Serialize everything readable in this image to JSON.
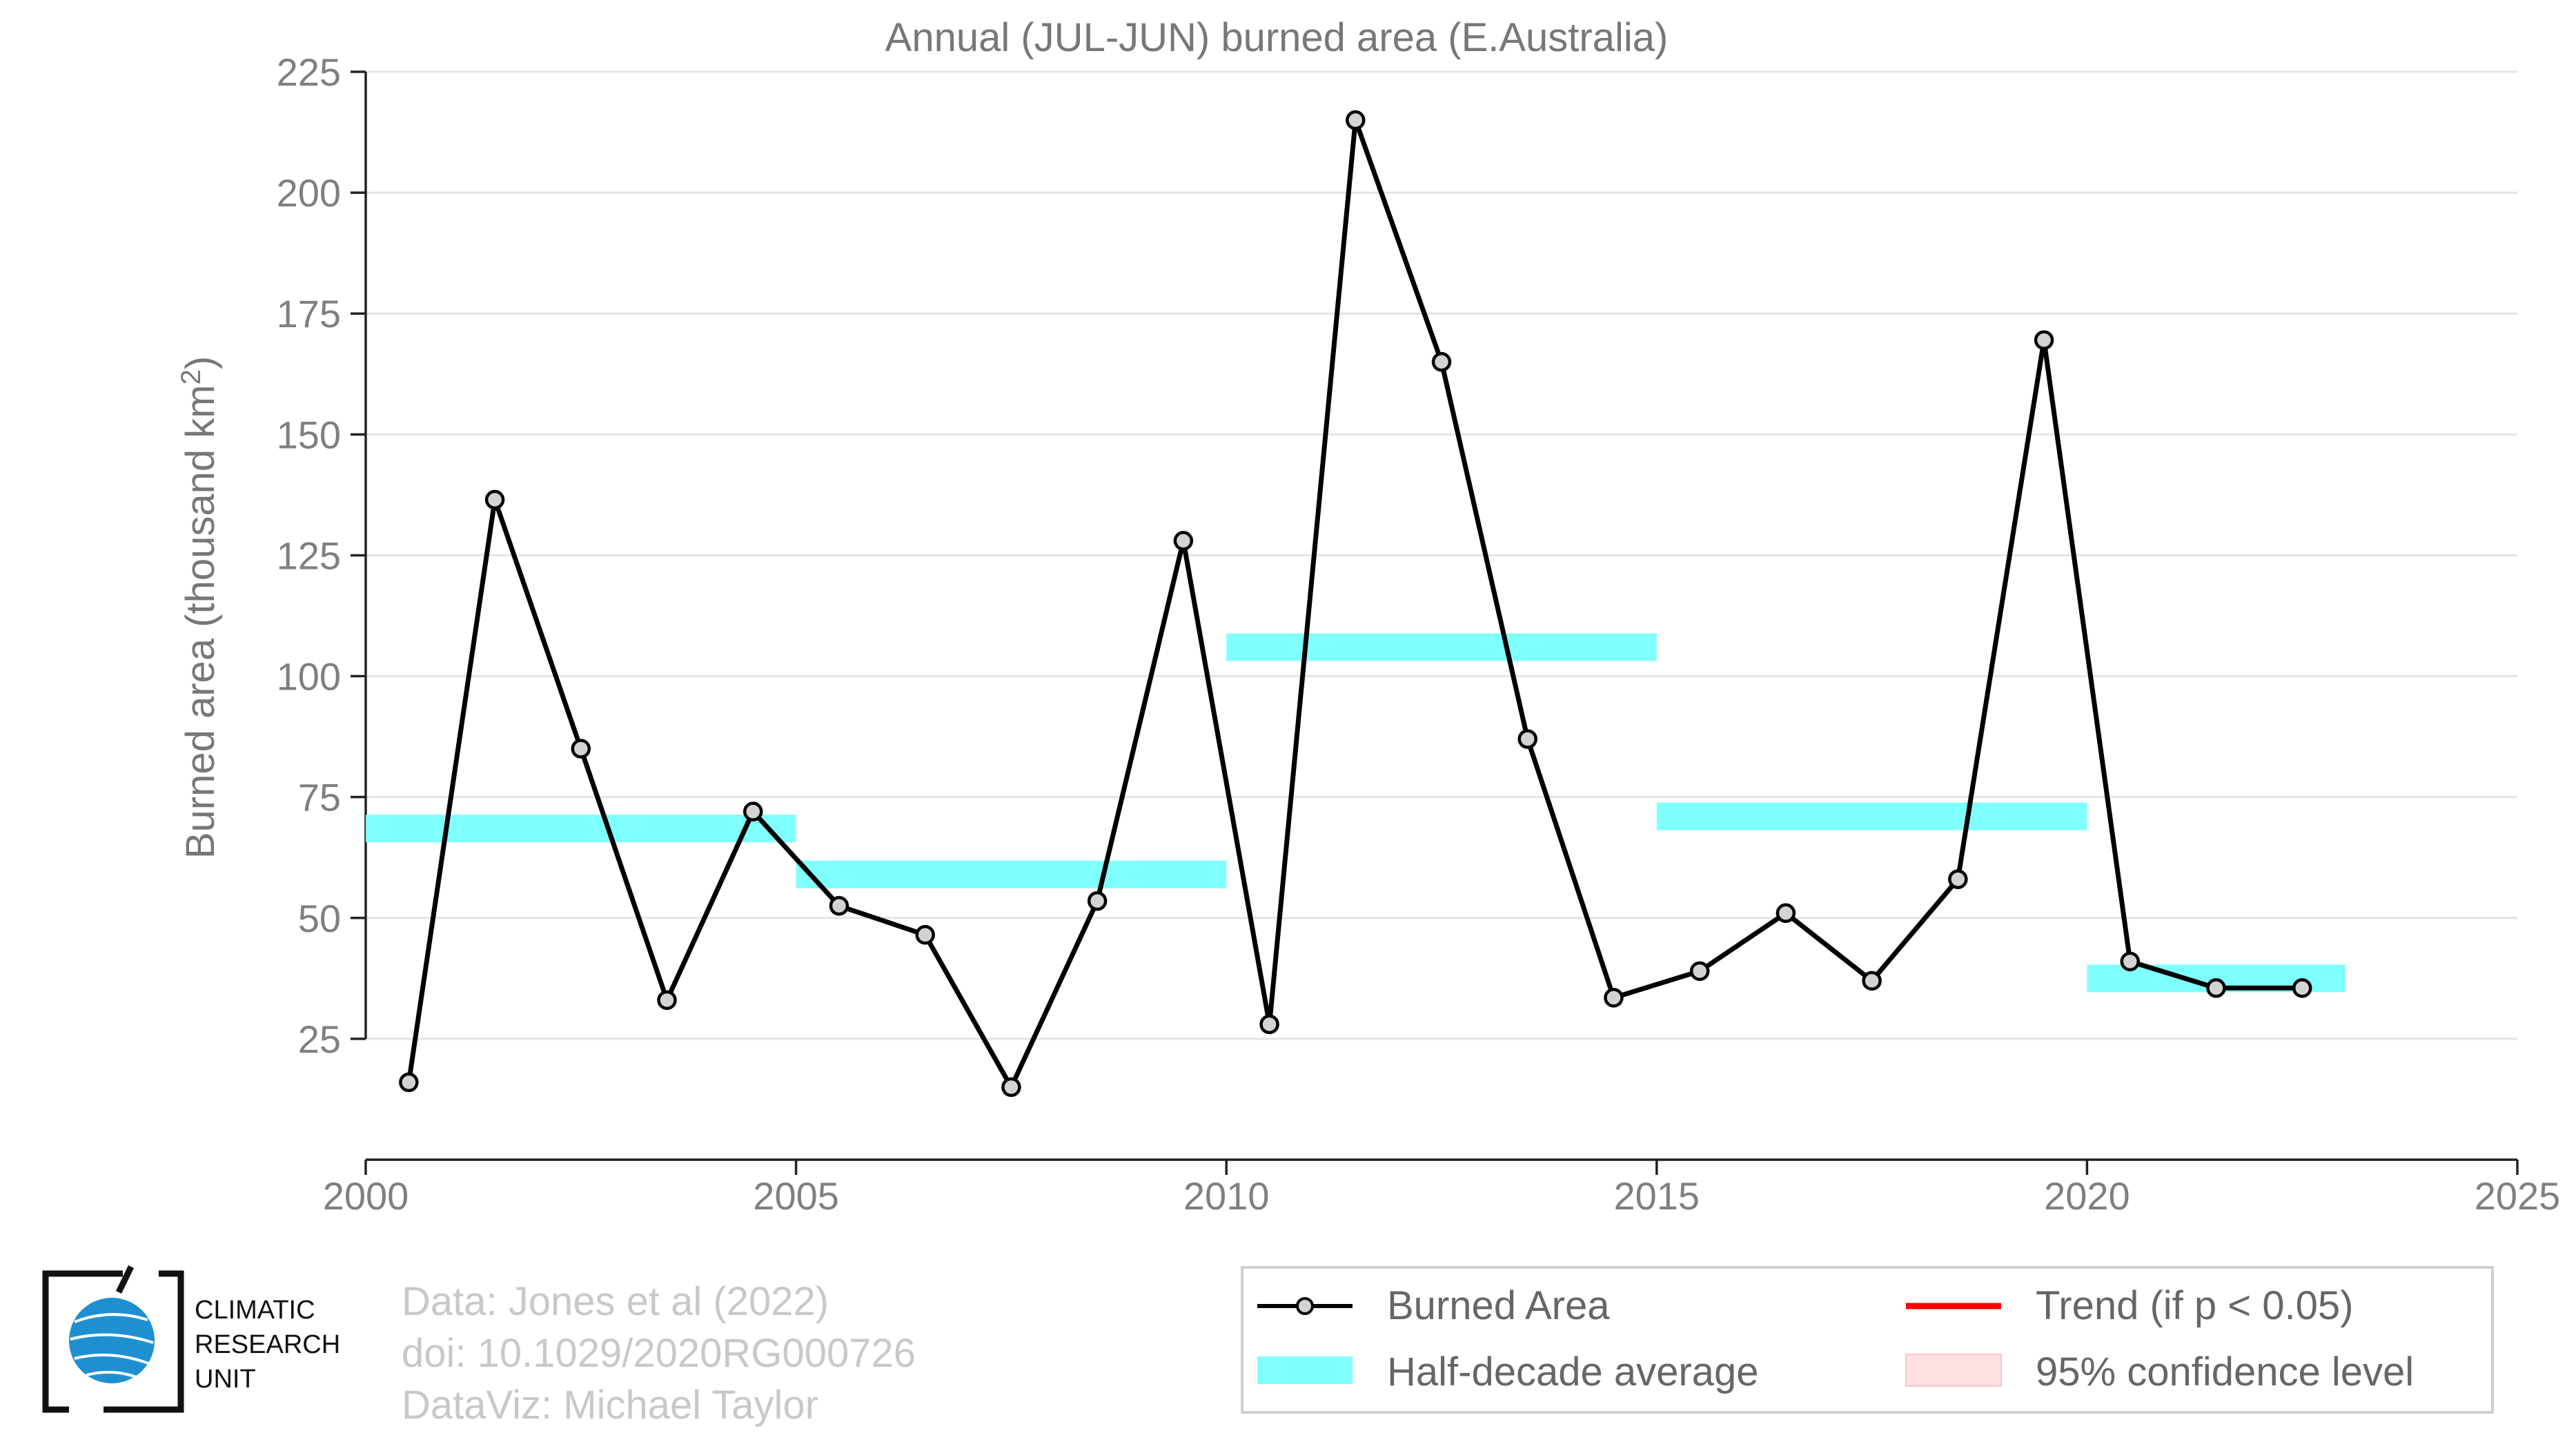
{
  "chart_data": {
    "type": "line",
    "title": "Annual (JUL-JUN) burned area (E.Australia)",
    "ylabel": "Burned area (thousand km",
    "ylabel_sup": "2",
    "ylabel_end": ")",
    "xlim": [
      2000,
      2025
    ],
    "ylim": [
      0,
      225
    ],
    "x_ticks": [
      "2000",
      "2005",
      "2010",
      "2015",
      "2020",
      "2025"
    ],
    "y_ticks": [
      "25",
      "50",
      "75",
      "100",
      "125",
      "150",
      "175",
      "200",
      "225"
    ],
    "grid": true,
    "series": [
      {
        "name": "Burned Area",
        "color": "#000000",
        "marker_fill": "#d3d3d3",
        "x": [
          2000.5,
          2001.5,
          2002.5,
          2003.5,
          2004.5,
          2005.5,
          2006.5,
          2007.5,
          2008.5,
          2009.5,
          2010.5,
          2011.5,
          2012.5,
          2013.5,
          2014.5,
          2015.5,
          2016.5,
          2017.5,
          2018.5,
          2019.5,
          2020.5,
          2021.5,
          2022.5
        ],
        "y": [
          16,
          136.5,
          85,
          33,
          72,
          52.5,
          46.5,
          15,
          53.5,
          128,
          28,
          215,
          165,
          87,
          33.5,
          39,
          51,
          37,
          58,
          169.5,
          41,
          35.5,
          35.5
        ]
      }
    ],
    "half_decade_average": {
      "name": "Half-decade average",
      "color": "#80ffff",
      "segments": [
        {
          "x_start": 2000,
          "x_end": 2005,
          "y": 68.5
        },
        {
          "x_start": 2005,
          "x_end": 2010,
          "y": 59
        },
        {
          "x_start": 2010,
          "x_end": 2015,
          "y": 106
        },
        {
          "x_start": 2015,
          "x_end": 2020,
          "y": 71
        },
        {
          "x_start": 2020,
          "x_end": 2023,
          "y": 37.5
        }
      ]
    },
    "legend": {
      "placement": "bottom-right",
      "items": [
        "Burned Area",
        "Trend (if p < 0.05)",
        "Half-decade average",
        "95% confidence level"
      ],
      "colors": {
        "trend": "#ff0000",
        "confidence": "#ffe0e0"
      }
    }
  },
  "credits": {
    "line1": "Data: Jones et al (2022)",
    "line2": "doi: 10.1029/2020RG000726",
    "line3": "DataViz: Michael Taylor"
  },
  "logo": {
    "line1": "CLIMATIC",
    "line2": "RESEARCH",
    "line3": "UNIT",
    "globe_color": "#1e90d0"
  }
}
